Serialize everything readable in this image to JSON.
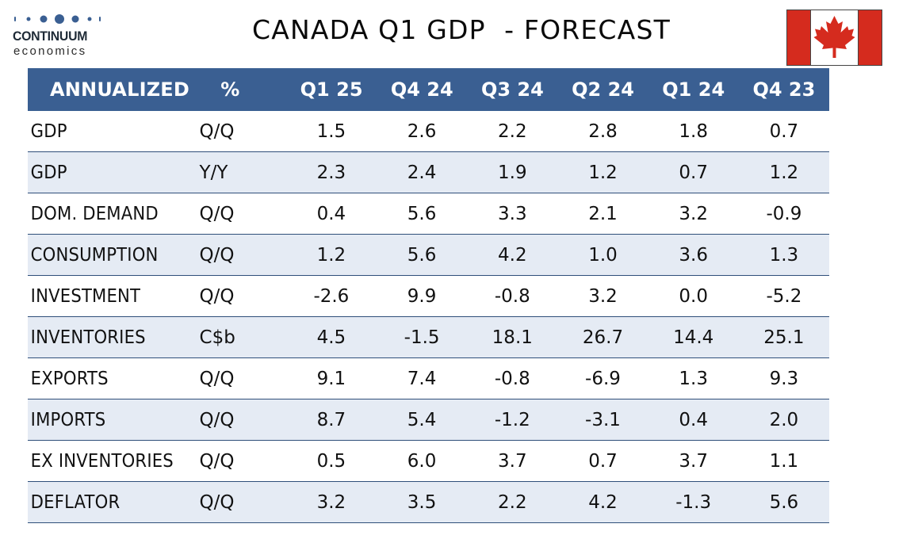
{
  "logo": {
    "name": "CONTINUUM",
    "sub": "economics",
    "dot_color": "#3a5f92"
  },
  "title": "CANADA Q1 GDP  - FORECAST",
  "flag": {
    "red": "#d52b1e",
    "white": "#ffffff",
    "icon": "canada-flag-icon"
  },
  "table": {
    "header": {
      "name": "ANNUALIZED",
      "unit": "%",
      "periods": [
        "Q1 25",
        "Q4 24",
        "Q3 24",
        "Q2 24",
        "Q1 24",
        "Q4 23"
      ]
    },
    "rows": [
      {
        "name": "GDP",
        "unit": "Q/Q",
        "values": [
          "1.5",
          "2.6",
          "2.2",
          "2.8",
          "1.8",
          "0.7"
        ]
      },
      {
        "name": "GDP",
        "unit": "Y/Y",
        "values": [
          "2.3",
          "2.4",
          "1.9",
          "1.2",
          "0.7",
          "1.2"
        ]
      },
      {
        "name": "DOM. DEMAND",
        "unit": "Q/Q",
        "values": [
          "0.4",
          "5.6",
          "3.3",
          "2.1",
          "3.2",
          "-0.9"
        ]
      },
      {
        "name": "CONSUMPTION",
        "unit": "Q/Q",
        "values": [
          "1.2",
          "5.6",
          "4.2",
          "1.0",
          "3.6",
          "1.3"
        ]
      },
      {
        "name": "INVESTMENT",
        "unit": "Q/Q",
        "values": [
          "-2.6",
          "9.9",
          "-0.8",
          "3.2",
          "0.0",
          "-5.2"
        ]
      },
      {
        "name": "INVENTORIES",
        "unit": "C$b",
        "values": [
          "4.5",
          "-1.5",
          "18.1",
          "26.7",
          "14.4",
          "25.1"
        ]
      },
      {
        "name": "EXPORTS",
        "unit": "Q/Q",
        "values": [
          "9.1",
          "7.4",
          "-0.8",
          "-6.9",
          "1.3",
          "9.3"
        ]
      },
      {
        "name": "IMPORTS",
        "unit": "Q/Q",
        "values": [
          "8.7",
          "5.4",
          "-1.2",
          "-3.1",
          "0.4",
          "2.0"
        ]
      },
      {
        "name": "EX INVENTORIES",
        "unit": "Q/Q",
        "values": [
          "0.5",
          "6.0",
          "3.7",
          "0.7",
          "3.7",
          "1.1"
        ]
      },
      {
        "name": "DEFLATOR",
        "unit": "Q/Q",
        "values": [
          "3.2",
          "3.5",
          "2.2",
          "4.2",
          "-1.3",
          "5.6"
        ]
      }
    ],
    "colors": {
      "header_bg": "#3a5f92",
      "stripe_bg": "#e5ebf4",
      "rule": "#2f4f7a"
    }
  }
}
